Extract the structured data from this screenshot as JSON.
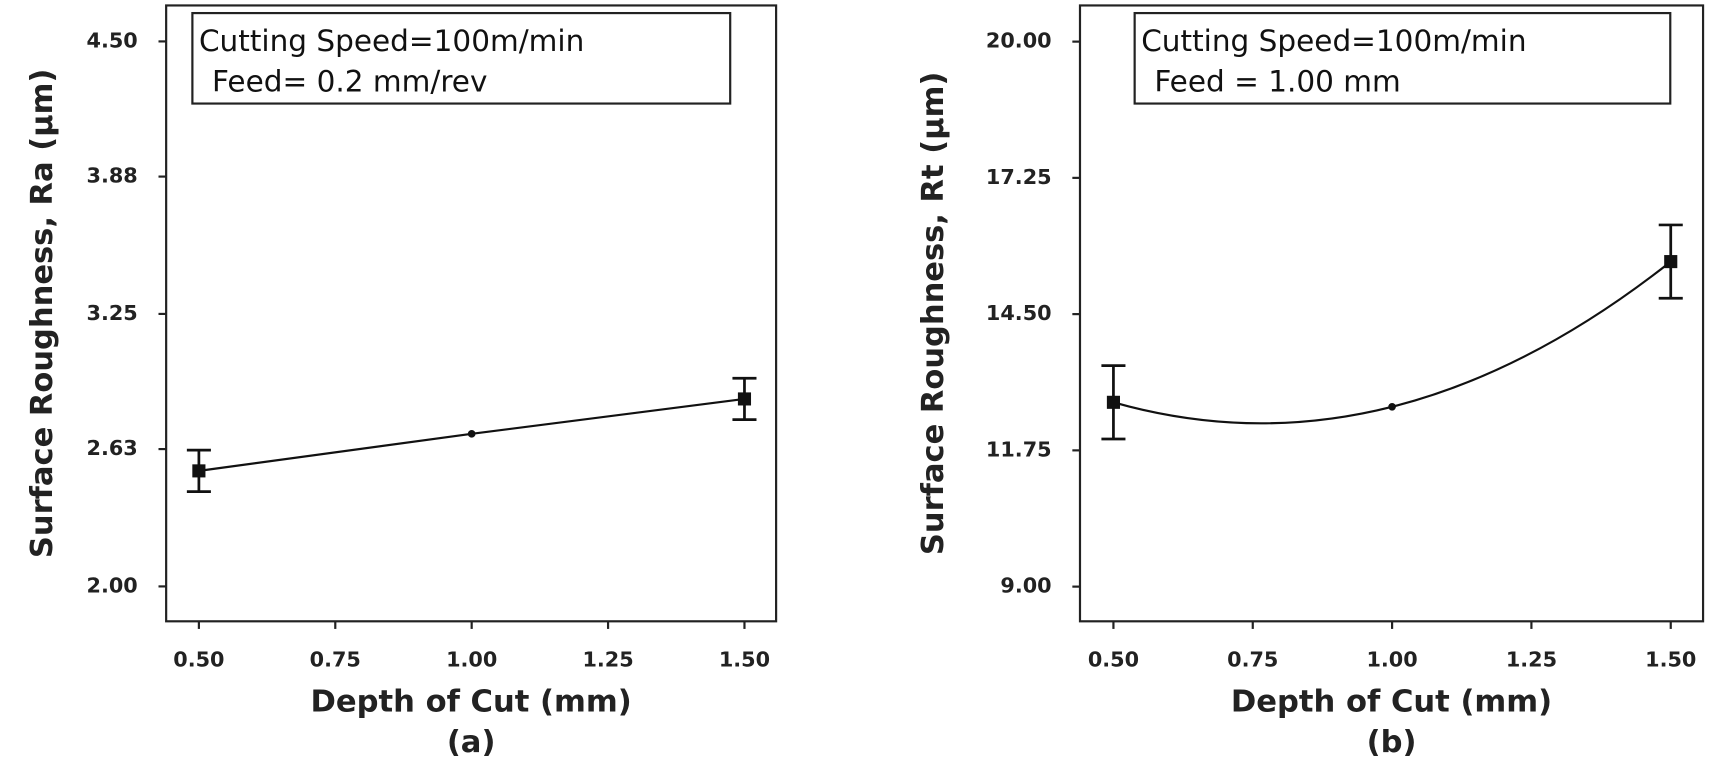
{
  "chart_data": [
    {
      "type": "line",
      "caption": "(a)",
      "xlabel": "Depth of Cut (mm)",
      "ylabel": "Surface Roughness, Ra (µm)",
      "annotation": [
        "Cutting Speed=100m/min",
        "Feed= 0.2 mm/rev"
      ],
      "x": [
        0.5,
        1.0,
        1.5
      ],
      "values": [
        2.53,
        2.7,
        2.86
      ],
      "errors": [
        0.095,
        null,
        0.095
      ],
      "color": "#111111",
      "xlim": [
        0.44,
        1.558
      ],
      "ylim": [
        1.84,
        4.665
      ],
      "xticks": [
        {
          "value": 0.5,
          "label": "0.50"
        },
        {
          "value": 0.75,
          "label": "0.75"
        },
        {
          "value": 1.0,
          "label": "1.00"
        },
        {
          "value": 1.25,
          "label": "1.25"
        },
        {
          "value": 1.5,
          "label": "1.50"
        }
      ],
      "yticks": [
        {
          "value": 2.0,
          "label": "2.00"
        },
        2.63,
        3.25,
        3.88,
        {
          "value": 4.5,
          "label": "4.50"
        }
      ]
    },
    {
      "type": "line",
      "caption": "(b)",
      "xlabel": "Depth of Cut (mm)",
      "ylabel": "Surface Roughness, Rt (µm)",
      "annotation": [
        "Cutting Speed=100m/min",
        "Feed = 1.00 mm"
      ],
      "x": [
        0.5,
        1.0,
        1.5
      ],
      "values": [
        12.72,
        12.63,
        15.56
      ],
      "errors": [
        0.74,
        null,
        0.74
      ],
      "color": "#111111",
      "xlim": [
        0.44,
        1.558
      ],
      "ylim": [
        8.3,
        20.73
      ],
      "xticks": [
        {
          "value": 0.5,
          "label": "0.50"
        },
        {
          "value": 0.75,
          "label": "0.75"
        },
        {
          "value": 1.0,
          "label": "1.00"
        },
        {
          "value": 1.25,
          "label": "1.25"
        },
        {
          "value": 1.5,
          "label": "1.50"
        }
      ],
      "yticks": [
        {
          "value": 9.0,
          "label": "9.00"
        },
        11.75,
        {
          "value": 14.5,
          "label": "14.50"
        },
        17.25,
        {
          "value": 20.0,
          "label": "20.00"
        }
      ]
    }
  ]
}
